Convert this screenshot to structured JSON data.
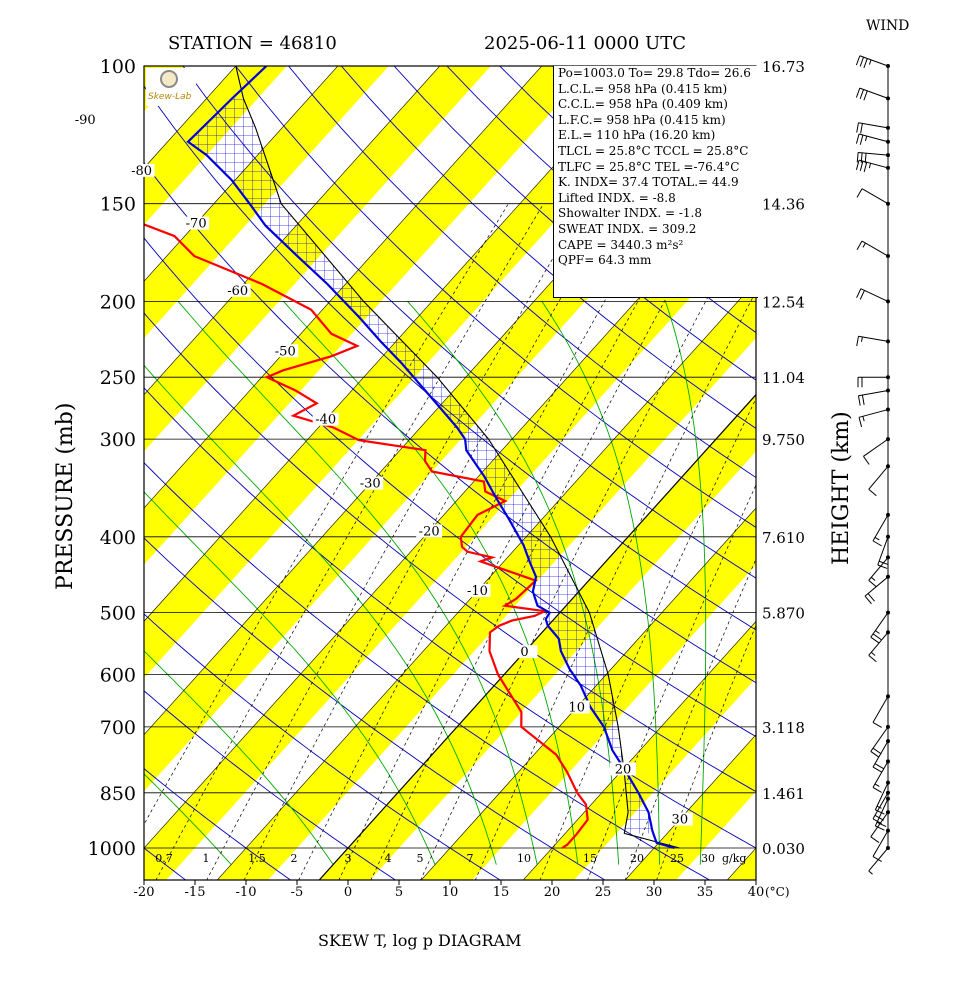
{
  "header": {
    "station": "STATION = 46810",
    "datetime": "2025-06-11 0000 UTC",
    "wind_title": "WIND",
    "bottom_title": "SKEW T, log p DIAGRAM",
    "y_left_title": "PRESSURE (mb)",
    "y_right_title": "HEIGHT (km)",
    "x_unit": "(°C)",
    "mixing_unit": "g/kg"
  },
  "logo": {
    "text": "Skew-Lab",
    "colors": {
      "seal": "#f2e9c5",
      "ring": "#8a8a8a"
    }
  },
  "info_lines": [
    "Po=1003.0 To= 29.8 Tdo= 26.6",
    "L.C.L.= 958 hPa (0.415 km)",
    "C.C.L.= 958 hPa (0.409 km)",
    "L.F.C.= 958 hPa (0.415 km)",
    "E.L.= 110 hPa (16.20 km)",
    "TLCL = 25.8°C TCCL = 25.8°C",
    "TLFC = 25.8°C TEL =-76.4°C",
    "K. INDX= 37.4 TOTAL.= 44.9",
    "Lifted INDX. = -8.8",
    "Showalter INDX. = -1.8",
    "SWEAT INDX. = 309.2",
    "CAPE = 3440.3 m²s²",
    "QPF= 64.3 mm"
  ],
  "colors": {
    "band": "#ffff00",
    "temperature": "#ff0000",
    "dewpoint": "#0000dd",
    "isotherm": "#0000bb",
    "moist_adiabat": "#00aa00",
    "mixing": "#000000",
    "hatch": "#0000dd"
  },
  "chart_data": {
    "type": "skew-t",
    "title": "SKEW T, log p DIAGRAM",
    "xlabel": "(°C)",
    "ylabel": "PRESSURE (mb)",
    "y2label": "HEIGHT (km)",
    "xlim": [
      -20,
      40
    ],
    "ylim": [
      1000,
      100
    ],
    "x_ticks": [
      -20,
      -15,
      -10,
      -5,
      0,
      5,
      10,
      15,
      20,
      25,
      30,
      35,
      40
    ],
    "pressure_ticks": [
      100,
      150,
      200,
      250,
      300,
      400,
      500,
      600,
      700,
      850,
      1000
    ],
    "height_labels": [
      {
        "p": 100,
        "label": "16.73"
      },
      {
        "p": 150,
        "label": "14.36"
      },
      {
        "p": 200,
        "label": "12.54"
      },
      {
        "p": 250,
        "label": "11.04"
      },
      {
        "p": 300,
        "label": "9.750"
      },
      {
        "p": 400,
        "label": "7.610"
      },
      {
        "p": 500,
        "label": "5.870"
      },
      {
        "p": 700,
        "label": "3.118"
      },
      {
        "p": 850,
        "label": "1.461"
      },
      {
        "p": 1000,
        "label": "0.030"
      }
    ],
    "isotherm_labels": [
      {
        "t": -90,
        "p": 118,
        "label": "-90"
      },
      {
        "t": -80,
        "p": 137,
        "label": "-80"
      },
      {
        "t": -70,
        "p": 160,
        "label": "-70"
      },
      {
        "t": -60,
        "p": 195,
        "label": "-60"
      },
      {
        "t": -50,
        "p": 233,
        "label": "-50"
      },
      {
        "t": -40,
        "p": 285,
        "label": "-40"
      },
      {
        "t": -30,
        "p": 344,
        "label": "-30"
      },
      {
        "t": -20,
        "p": 396,
        "label": "-20"
      },
      {
        "t": -10,
        "p": 472,
        "label": "-10"
      },
      {
        "t": 0,
        "p": 565,
        "label": "0"
      },
      {
        "t": 10,
        "p": 665,
        "label": "10"
      },
      {
        "t": 20,
        "p": 798,
        "label": "20"
      },
      {
        "t": 30,
        "p": 925,
        "label": "30"
      }
    ],
    "mixing_ratio_labels": [
      "0.7",
      "1",
      "1.5",
      "2",
      "3",
      "4",
      "5",
      "7",
      "10",
      "15",
      "20",
      "25",
      "30"
    ],
    "dewpoint": [
      {
        "p": 1000,
        "t": 21.0
      },
      {
        "p": 990,
        "t": 21.2
      },
      {
        "p": 960,
        "t": 21.2
      },
      {
        "p": 920,
        "t": 21.0
      },
      {
        "p": 880,
        "t": 19.5
      },
      {
        "p": 850,
        "t": 17.6
      },
      {
        "p": 800,
        "t": 14.8
      },
      {
        "p": 760,
        "t": 12.2
      },
      {
        "p": 700,
        "t": 6.3
      },
      {
        "p": 670,
        "t": 5.0
      },
      {
        "p": 600,
        "t": -0.6
      },
      {
        "p": 560,
        "t": -3.5
      },
      {
        "p": 530,
        "t": -5.1
      },
      {
        "p": 520,
        "t": -4.8
      },
      {
        "p": 512,
        "t": -4.0
      },
      {
        "p": 505,
        "t": -2.2
      },
      {
        "p": 498,
        "t": -1.6
      },
      {
        "p": 490,
        "t": -6.0
      },
      {
        "p": 480,
        "t": -5.5
      },
      {
        "p": 455,
        "t": -5.2
      },
      {
        "p": 430,
        "t": -12.3
      },
      {
        "p": 425,
        "t": -11.5
      },
      {
        "p": 418,
        "t": -14.4
      },
      {
        "p": 412,
        "t": -15.4
      },
      {
        "p": 400,
        "t": -16.4
      },
      {
        "p": 375,
        "t": -16.7
      },
      {
        "p": 360,
        "t": -15.2
      },
      {
        "p": 350,
        "t": -18.0
      },
      {
        "p": 340,
        "t": -19.0
      },
      {
        "p": 330,
        "t": -25.0
      },
      {
        "p": 320,
        "t": -26.6
      },
      {
        "p": 310,
        "t": -27.5
      },
      {
        "p": 301,
        "t": -34.9
      },
      {
        "p": 290,
        "t": -38.5
      },
      {
        "p": 280,
        "t": -43.5
      },
      {
        "p": 270,
        "t": -42.3
      },
      {
        "p": 260,
        "t": -45.5
      },
      {
        "p": 250,
        "t": -49.5
      },
      {
        "p": 245,
        "t": -48.5
      },
      {
        "p": 235,
        "t": -45.0
      },
      {
        "p": 228,
        "t": -43.4
      },
      {
        "p": 220,
        "t": -47.0
      },
      {
        "p": 205,
        "t": -51.1
      },
      {
        "p": 190,
        "t": -58.2
      },
      {
        "p": 175,
        "t": -67.3
      },
      {
        "p": 165,
        "t": -71.0
      },
      {
        "p": 150,
        "t": -82.2
      },
      {
        "p": 140,
        "t": -90.3
      },
      {
        "p": 130,
        "t": -96.6
      },
      {
        "p": 120,
        "t": -101.5
      },
      {
        "p": 110,
        "t": -105.0
      },
      {
        "p": 100,
        "t": -109.0
      }
    ],
    "temperature": [
      {
        "p": 1000,
        "t": 32.0
      },
      {
        "p": 985,
        "t": 29.8
      },
      {
        "p": 950,
        "t": 28.3
      },
      {
        "p": 900,
        "t": 26.3
      },
      {
        "p": 850,
        "t": 23.6
      },
      {
        "p": 800,
        "t": 20.6
      },
      {
        "p": 750,
        "t": 17.3
      },
      {
        "p": 700,
        "t": 14.4
      },
      {
        "p": 660,
        "t": 11.3
      },
      {
        "p": 620,
        "t": 8.5
      },
      {
        "p": 590,
        "t": 5.9
      },
      {
        "p": 560,
        "t": 3.5
      },
      {
        "p": 540,
        "t": 2.2
      },
      {
        "p": 520,
        "t": 0.0
      },
      {
        "p": 510,
        "t": -0.8
      },
      {
        "p": 500,
        "t": -1.0
      },
      {
        "p": 490,
        "t": -2.8
      },
      {
        "p": 470,
        "t": -4.5
      },
      {
        "p": 450,
        "t": -5.5
      },
      {
        "p": 430,
        "t": -7.5
      },
      {
        "p": 410,
        "t": -9.5
      },
      {
        "p": 400,
        "t": -10.7
      },
      {
        "p": 380,
        "t": -13.2
      },
      {
        "p": 355,
        "t": -16.6
      },
      {
        "p": 335,
        "t": -19.4
      },
      {
        "p": 310,
        "t": -23.5
      },
      {
        "p": 300,
        "t": -24.6
      },
      {
        "p": 290,
        "t": -26.4
      },
      {
        "p": 275,
        "t": -29.5
      },
      {
        "p": 260,
        "t": -32.8
      },
      {
        "p": 250,
        "t": -35.1
      },
      {
        "p": 240,
        "t": -37.5
      },
      {
        "p": 225,
        "t": -41.5
      },
      {
        "p": 210,
        "t": -45.6
      },
      {
        "p": 190,
        "t": -51.8
      },
      {
        "p": 175,
        "t": -57.2
      },
      {
        "p": 160,
        "t": -63.0
      },
      {
        "p": 150,
        "t": -66.5
      },
      {
        "p": 140,
        "t": -70.3
      },
      {
        "p": 130,
        "t": -75.0
      },
      {
        "p": 125,
        "t": -78.0
      },
      {
        "p": 110,
        "t": -77.5
      },
      {
        "p": 100,
        "t": -77.0
      }
    ],
    "parcel": [
      {
        "p": 1000,
        "t": 32.5
      },
      {
        "p": 958,
        "t": 25.8
      },
      {
        "p": 900,
        "t": 24.3
      },
      {
        "p": 850,
        "t": 22.4
      },
      {
        "p": 800,
        "t": 20.4
      },
      {
        "p": 700,
        "t": 15.8
      },
      {
        "p": 600,
        "t": 10.2
      },
      {
        "p": 500,
        "t": 2.9
      },
      {
        "p": 400,
        "t": -7.6
      },
      {
        "p": 300,
        "t": -22.3
      },
      {
        "p": 250,
        "t": -32.8
      },
      {
        "p": 200,
        "t": -46.7
      },
      {
        "p": 150,
        "t": -63.4
      },
      {
        "p": 120,
        "t": -72.6
      },
      {
        "p": 110,
        "t": -76.4
      },
      {
        "p": 100,
        "t": -80.0
      }
    ],
    "wind_barb_levels": [
      {
        "p": 100,
        "dir": 290,
        "kt": 35
      },
      {
        "p": 110,
        "dir": 290,
        "kt": 30
      },
      {
        "p": 120,
        "dir": 280,
        "kt": 20
      },
      {
        "p": 125,
        "dir": 285,
        "kt": 25
      },
      {
        "p": 130,
        "dir": 275,
        "kt": 30
      },
      {
        "p": 135,
        "dir": 285,
        "kt": 35
      },
      {
        "p": 150,
        "dir": 300,
        "kt": 10
      },
      {
        "p": 175,
        "dir": 300,
        "kt": 15
      },
      {
        "p": 200,
        "dir": 295,
        "kt": 20
      },
      {
        "p": 225,
        "dir": 280,
        "kt": 15
      },
      {
        "p": 250,
        "dir": 270,
        "kt": 20
      },
      {
        "p": 260,
        "dir": 260,
        "kt": 20
      },
      {
        "p": 275,
        "dir": 255,
        "kt": 15
      },
      {
        "p": 300,
        "dir": 235,
        "kt": 10
      },
      {
        "p": 325,
        "dir": 220,
        "kt": 10
      },
      {
        "p": 375,
        "dir": 210,
        "kt": 15
      },
      {
        "p": 400,
        "dir": 200,
        "kt": 20
      },
      {
        "p": 425,
        "dir": 220,
        "kt": 15
      },
      {
        "p": 450,
        "dir": 230,
        "kt": 20
      },
      {
        "p": 500,
        "dir": 215,
        "kt": 25
      },
      {
        "p": 530,
        "dir": 220,
        "kt": 15
      },
      {
        "p": 640,
        "dir": 210,
        "kt": 10
      },
      {
        "p": 700,
        "dir": 215,
        "kt": 20
      },
      {
        "p": 730,
        "dir": 210,
        "kt": 20
      },
      {
        "p": 775,
        "dir": 210,
        "kt": 15
      },
      {
        "p": 825,
        "dir": 205,
        "kt": 15
      },
      {
        "p": 850,
        "dir": 210,
        "kt": 20
      },
      {
        "p": 865,
        "dir": 205,
        "kt": 20
      },
      {
        "p": 900,
        "dir": 215,
        "kt": 10
      },
      {
        "p": 950,
        "dir": 210,
        "kt": 10
      },
      {
        "p": 1000,
        "dir": 220,
        "kt": 5
      }
    ]
  }
}
